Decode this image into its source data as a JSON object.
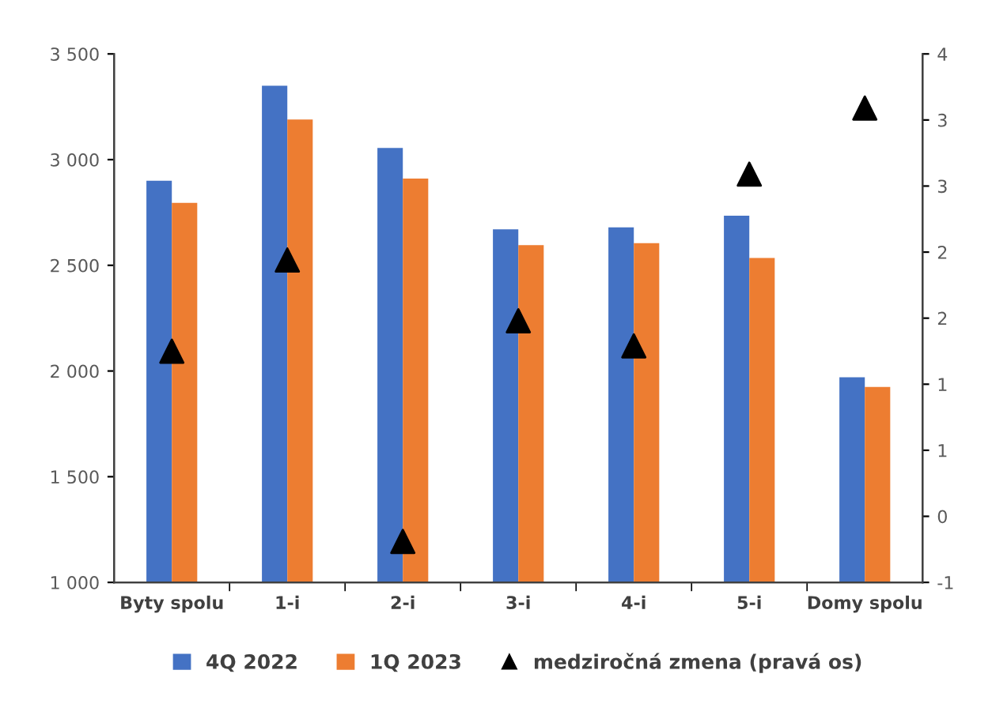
{
  "chart_data": {
    "type": "bar",
    "categories": [
      "Byty spolu",
      "1-i",
      "2-i",
      "3-i",
      "4-i",
      "5-i",
      "Domy spolu"
    ],
    "series": [
      {
        "name": "4Q 2022",
        "color": "#4472c4",
        "values": [
          2900,
          3350,
          3055,
          2670,
          2680,
          2735,
          1970
        ]
      },
      {
        "name": "1Q 2023",
        "color": "#ed7d31",
        "values": [
          2795,
          3190,
          2910,
          2595,
          2605,
          2535,
          1925
        ]
      },
      {
        "name": "medziročná zmena (pravá os)",
        "type": "scatter",
        "axis": "y2",
        "marker": "triangle",
        "color": "#000000",
        "values": [
          1.25,
          1.94,
          -0.19,
          1.48,
          1.29,
          2.59,
          3.09
        ]
      }
    ],
    "ylim": [
      1000,
      3500
    ],
    "yticks": [
      {
        "value": 1000,
        "label": "1 000"
      },
      {
        "value": 1500,
        "label": "1 500"
      },
      {
        "value": 2000,
        "label": "2 000"
      },
      {
        "value": 2500,
        "label": "2 500"
      },
      {
        "value": 3000,
        "label": "3 000"
      },
      {
        "value": 3500,
        "label": "3 500"
      }
    ],
    "y2lim": [
      -0.5,
      3.5
    ],
    "y2ticks": [
      {
        "value": -0.5,
        "label": "-1"
      },
      {
        "value": 0,
        "label": "0"
      },
      {
        "value": 0.5,
        "label": "1"
      },
      {
        "value": 1,
        "label": "1"
      },
      {
        "value": 1.5,
        "label": "2"
      },
      {
        "value": 2,
        "label": "2"
      },
      {
        "value": 2.5,
        "label": "3"
      },
      {
        "value": 3,
        "label": "3"
      },
      {
        "value": 3.5,
        "label": "4"
      }
    ],
    "grid": false,
    "legend": "bottom"
  }
}
